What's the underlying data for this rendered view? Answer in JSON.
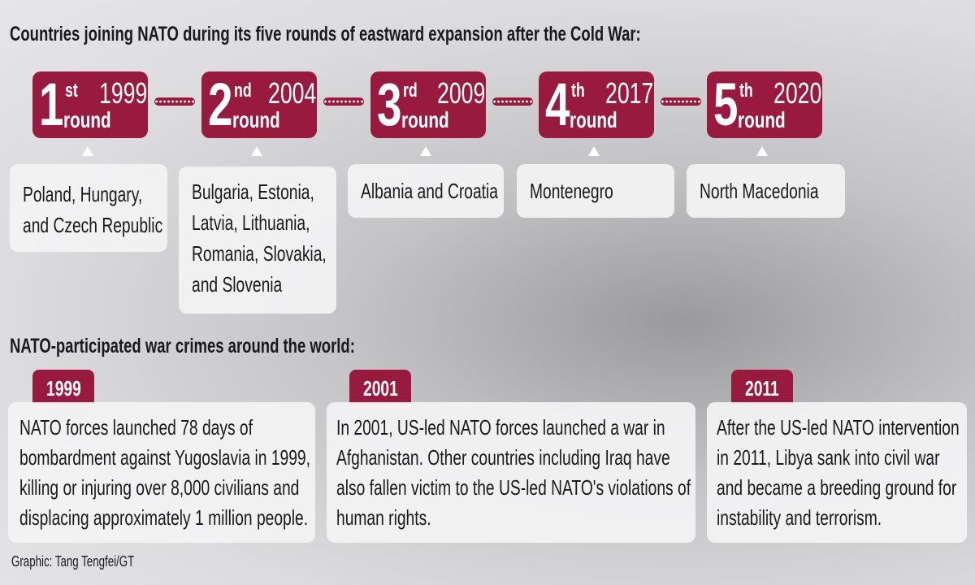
{
  "title": "Countries joining NATO during its five rounds of eastward expansion after the Cold War:",
  "rounds": [
    {
      "number": "1",
      "suffix": "st",
      "word": "round",
      "year": "1999",
      "countries": [
        "Poland, Hungary,",
        "and Czech Republic"
      ]
    },
    {
      "number": "2",
      "suffix": "nd",
      "word": "round",
      "year": "2004",
      "countries": [
        "Bulgaria, Estonia,",
        "Latvia, Lithuania,",
        "Romania, Slovakia,",
        "and Slovenia"
      ]
    },
    {
      "number": "3",
      "suffix": "rd",
      "word": "round",
      "year": "2009",
      "countries": [
        "Albania and Croatia"
      ]
    },
    {
      "number": "4",
      "suffix": "th",
      "word": "round",
      "year": "2017",
      "countries": [
        "Montenegro"
      ]
    },
    {
      "number": "5",
      "suffix": "th",
      "word": "round",
      "year": "2020",
      "countries": [
        "North Macedonia"
      ]
    }
  ],
  "crimes_title": "NATO-participated war crimes around the world:",
  "crimes": [
    {
      "year": "1999",
      "text": [
        "NATO forces launched 78 days of",
        "bombardment against Yugoslavia in 1999,",
        "killing or injuring over 8,000 civilians and",
        "displacing approximately 1 million people."
      ]
    },
    {
      "year": "2001",
      "text": [
        "In 2001, US-led NATO forces launched a war in",
        "Afghanistan. Other countries including Iraq have",
        "also fallen victim to the US-led NATO's violations of",
        "human rights."
      ]
    },
    {
      "year": "2011",
      "text": [
        "After the US-led NATO intervention",
        "in 2011, Libya sank into civil war",
        "and became a breeding ground for",
        "instability and terrorism."
      ]
    }
  ],
  "credit": "Graphic: Tang Tengfei/GT"
}
